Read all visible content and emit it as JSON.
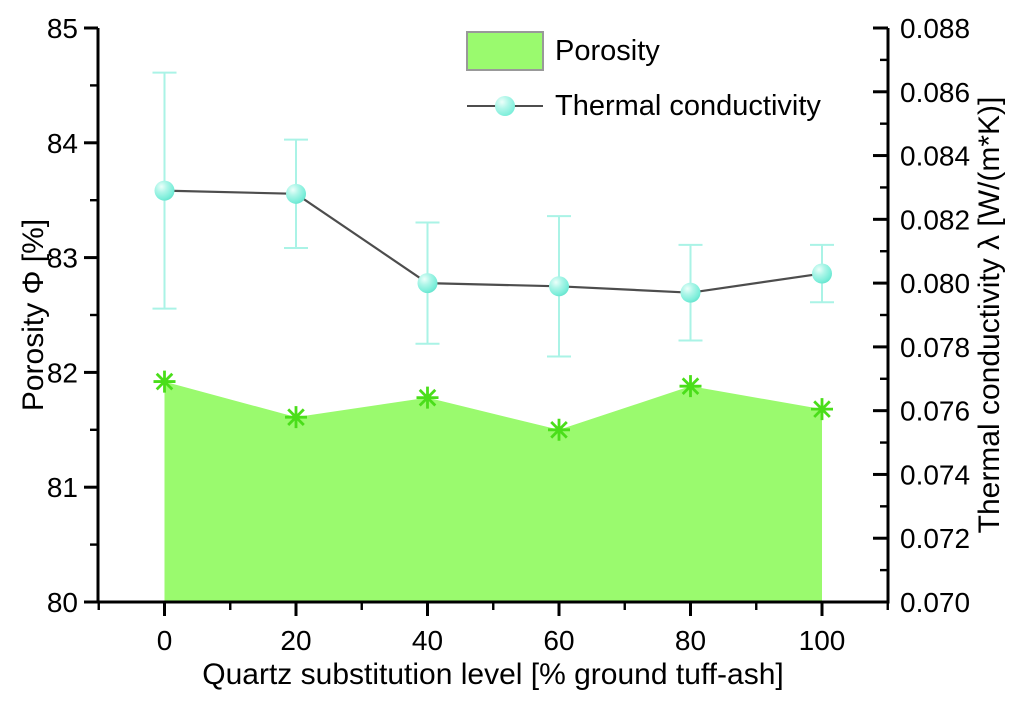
{
  "colors": {
    "background": "#ffffff",
    "axis": "#000000",
    "porosity_fill": "#9afa6e",
    "porosity_marker": "#4ade1a",
    "thermal_marker": "#7ceeda",
    "thermal_marker_highlight": "#ecfffa",
    "thermal_line": "#4d4d4d",
    "thermal_error": "#aaf3e6",
    "legend_swatch_border": "#999999"
  },
  "legend": {
    "position": "top-center-inside",
    "items": [
      {
        "label": "Porosity",
        "symbol": "area-swatch"
      },
      {
        "label": "Thermal conductivity",
        "symbol": "line-sphere-marker"
      }
    ]
  },
  "chart_data": {
    "type": "line",
    "title": "",
    "grid": false,
    "x": [
      0,
      20,
      40,
      60,
      80,
      100
    ],
    "x_axis": {
      "label": "Quartz substitution level [% ground tuff-ash]",
      "ticks": [
        0,
        20,
        40,
        60,
        80,
        100
      ],
      "minor_ticks": [
        -10,
        10,
        30,
        50,
        70,
        90,
        110
      ],
      "range": [
        -10.5,
        110.5
      ]
    },
    "left_axis": {
      "label": "Porosity Φ [%]",
      "ticks": [
        80,
        81,
        82,
        83,
        84,
        85
      ],
      "minor_ticks": [
        80.5,
        81.5,
        82.5,
        83.5,
        84.5
      ],
      "range": [
        80,
        85
      ]
    },
    "right_axis": {
      "label": "Thermal conductivity λ [W/(m*K)]",
      "ticks": [
        "0.070",
        "0.072",
        "0.074",
        "0.076",
        "0.078",
        "0.080",
        "0.082",
        "0.084",
        "0.086",
        "0.088"
      ],
      "minor_ticks": [
        0.071,
        0.073,
        0.075,
        0.077,
        0.079,
        0.081,
        0.083,
        0.085,
        0.087
      ],
      "range": [
        0.07,
        0.088
      ]
    },
    "series": [
      {
        "name": "Porosity",
        "type": "area",
        "axis": "left",
        "marker": "asterisk",
        "baseline": 80,
        "values": [
          81.92,
          81.61,
          81.78,
          81.5,
          81.88,
          81.68
        ]
      },
      {
        "name": "Thermal conductivity",
        "type": "line",
        "axis": "right",
        "marker": "sphere",
        "values": [
          0.0829,
          0.0828,
          0.08,
          0.0799,
          0.0797,
          0.0803
        ],
        "errors": [
          0.0037,
          0.0017,
          0.0019,
          0.0022,
          0.0015,
          0.0009
        ]
      }
    ]
  }
}
